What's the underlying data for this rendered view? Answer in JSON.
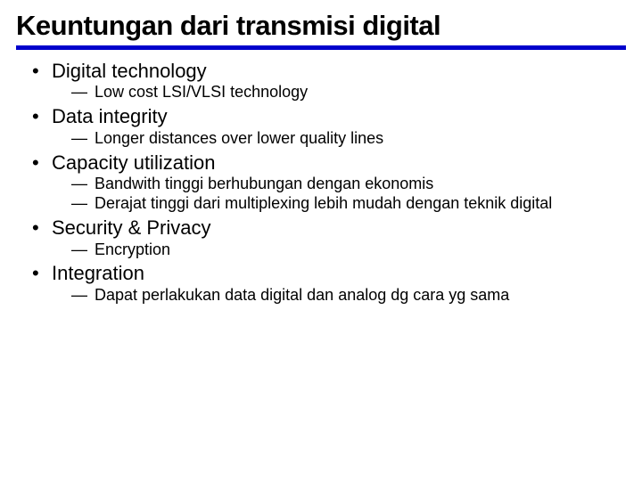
{
  "title": "Keuntungan dari transmisi digital",
  "rule_color": "#0000cc",
  "bullet_color": "#000000",
  "text_color": "#000000",
  "background_color": "#ffffff",
  "title_fontsize": 31,
  "level1_fontsize": 22,
  "level2_fontsize": 18,
  "items": [
    {
      "label": "Digital technology",
      "sub": [
        "Low cost LSI/VLSI technology"
      ]
    },
    {
      "label": "Data integrity",
      "sub": [
        "Longer distances over lower quality lines"
      ]
    },
    {
      "label": "Capacity utilization",
      "sub": [
        "Bandwith tinggi berhubungan dengan ekonomis",
        "Derajat tinggi dari multiplexing lebih mudah dengan teknik digital"
      ]
    },
    {
      "label": "Security & Privacy",
      "sub": [
        "Encryption"
      ]
    },
    {
      "label": "Integration",
      "sub": [
        "Dapat perlakukan data digital dan analog dg cara yg sama"
      ]
    }
  ]
}
